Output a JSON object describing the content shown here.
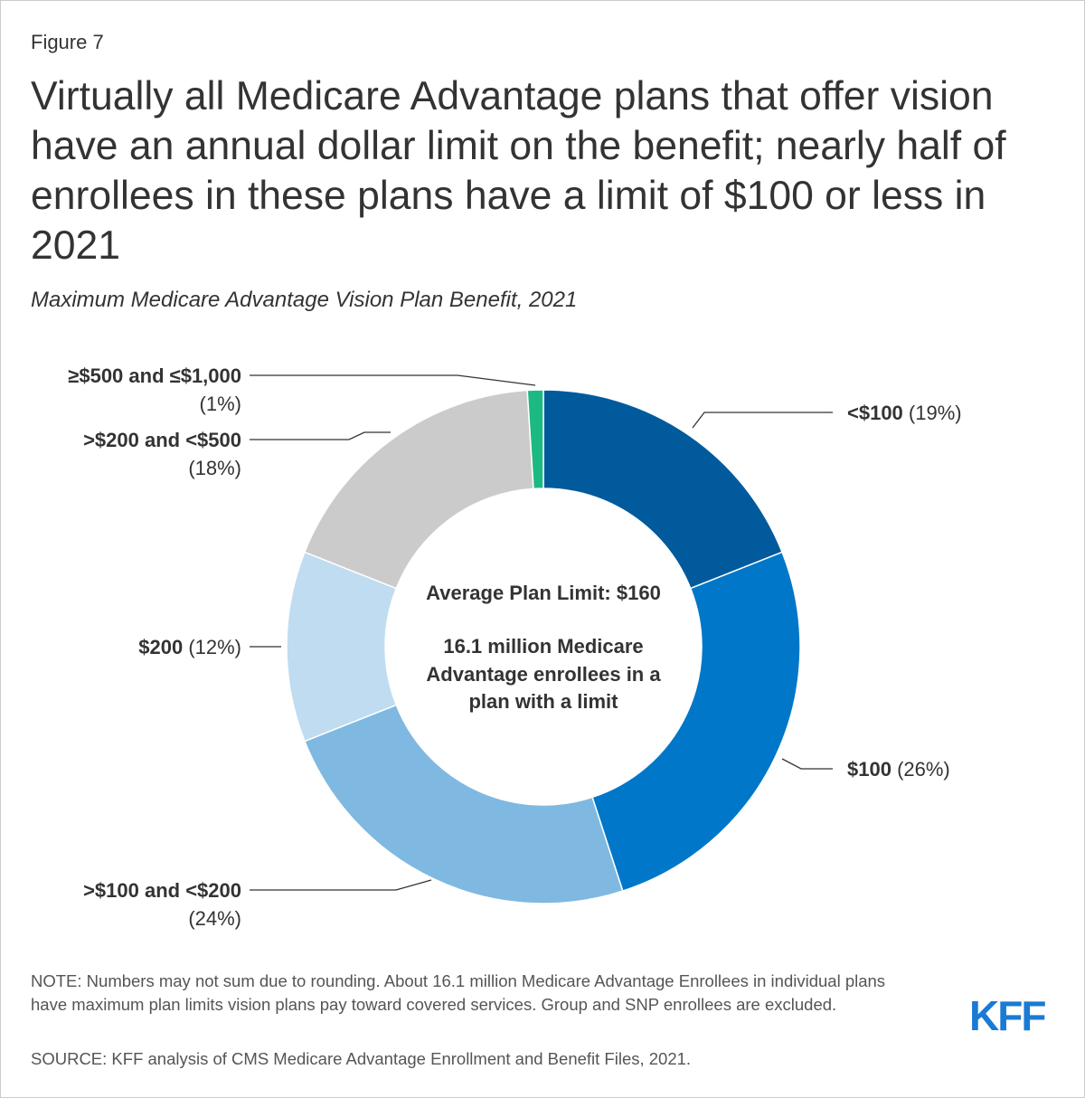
{
  "figure_label": "Figure 7",
  "title": "Virtually all Medicare Advantage plans that offer vision have an annual dollar limit on the benefit; nearly half of enrollees in these plans have a limit of $100 or less in 2021",
  "subtitle": "Maximum Medicare Advantage Vision Plan Benefit, 2021",
  "center": {
    "line1": "Average Plan Limit: $160",
    "line2": "16.1 million Medicare",
    "line3": "Advantage enrollees in a",
    "line4": "plan with a limit"
  },
  "note": "NOTE: Numbers may not sum due to rounding. About 16.1 million Medicare Advantage Enrollees in individual plans have maximum plan limits vision plans pay toward covered services. Group and SNP enrollees are excluded.",
  "source": "SOURCE: KFF analysis of CMS Medicare Advantage Enrollment and Benefit Files, 2021.",
  "logo": "KFF",
  "colors": {
    "brand": "#1a7ad4",
    "leader": "#333333",
    "slice_border": "#ffffff"
  },
  "chart_data": {
    "type": "pie",
    "variant": "donut",
    "title": "Maximum Medicare Advantage Vision Plan Benefit, 2021",
    "start_angle_deg": 0,
    "direction": "clockwise",
    "slices": [
      {
        "id": "lt100",
        "label": "<$100",
        "pct_text": "(19%)",
        "value": 19,
        "color": "#005a9c"
      },
      {
        "id": "eq100",
        "label": "$100",
        "pct_text": "(26%)",
        "value": 26,
        "color": "#0077c8"
      },
      {
        "id": "100to200",
        "label": ">$100 and <$200",
        "pct_text": "(24%)",
        "value": 24,
        "color": "#7fb9e1"
      },
      {
        "id": "eq200",
        "label": "$200",
        "pct_text": "(12%)",
        "value": 12,
        "color": "#c0dcf0"
      },
      {
        "id": "200to500",
        "label": ">$200 and <$500",
        "pct_text": "(18%)",
        "value": 18,
        "color": "#cbcbcb"
      },
      {
        "id": "500to1000",
        "label": "≥$500 and ≤$1,000",
        "pct_text": "(1%)",
        "value": 1,
        "color": "#1db983"
      }
    ]
  }
}
